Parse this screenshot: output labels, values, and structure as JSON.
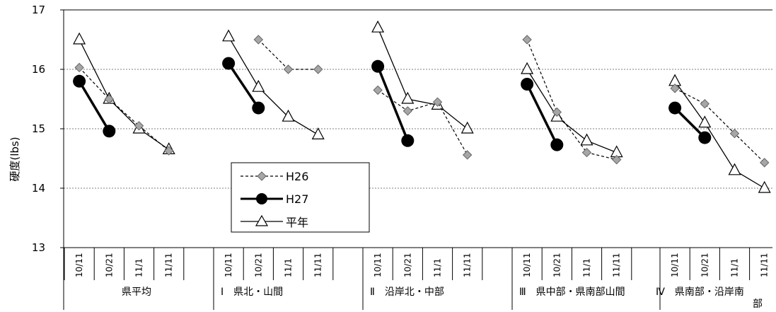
{
  "chart_data": {
    "type": "line",
    "ylabel": "硬度(lbs)",
    "ylim": [
      13,
      17
    ],
    "yticks": [
      "13",
      "14",
      "15",
      "16",
      "17"
    ],
    "grid": true,
    "legend_position": "lower-left",
    "groups": [
      {
        "label": "県平均",
        "dates": [
          "10/11",
          "10/21",
          "11/1",
          "11/11"
        ]
      },
      {
        "label": "Ⅰ　県北・山間",
        "dates": [
          "10/11",
          "10/21",
          "11/1",
          "11/11"
        ]
      },
      {
        "label": "Ⅱ　沿岸北・中部",
        "dates": [
          "10/11",
          "10/21",
          "11/1",
          "11/11"
        ]
      },
      {
        "label": "Ⅲ　県中部・県南部山間",
        "dates": [
          "10/11",
          "10/21",
          "11/1",
          "11/11"
        ]
      },
      {
        "label": "Ⅳ　県南部・沿岸南部",
        "dates": [
          "10/11",
          "10/21",
          "11/1",
          "11/11"
        ]
      }
    ],
    "series": [
      {
        "name": "H26",
        "style": "dashed-diamond",
        "color": "#000000",
        "marker_fill": "#a6a6a6",
        "values": [
          [
            16.03,
            15.5,
            15.05,
            14.63
          ],
          [
            null,
            16.5,
            16.0,
            16.0
          ],
          [
            15.65,
            15.3,
            15.45,
            14.56
          ],
          [
            16.5,
            15.28,
            14.6,
            14.48
          ],
          [
            15.68,
            15.42,
            14.92,
            14.43
          ]
        ]
      },
      {
        "name": "H27",
        "style": "thick-circle",
        "color": "#000000",
        "marker_fill": "#000000",
        "values": [
          [
            15.8,
            14.96,
            null,
            null
          ],
          [
            16.1,
            15.35,
            null,
            null
          ],
          [
            16.05,
            14.8,
            null,
            null
          ],
          [
            15.75,
            14.73,
            null,
            null
          ],
          [
            15.35,
            14.85,
            null,
            null
          ]
        ]
      },
      {
        "name": "平年",
        "style": "thin-triangle",
        "color": "#000000",
        "marker_fill": "#ffffff",
        "values": [
          [
            16.5,
            15.5,
            15.0,
            14.65
          ],
          [
            16.55,
            15.7,
            15.2,
            14.9
          ],
          [
            16.7,
            15.5,
            15.4,
            15.0
          ],
          [
            16.0,
            15.2,
            14.8,
            14.6
          ],
          [
            15.8,
            15.1,
            14.3,
            14.0
          ]
        ]
      }
    ]
  }
}
